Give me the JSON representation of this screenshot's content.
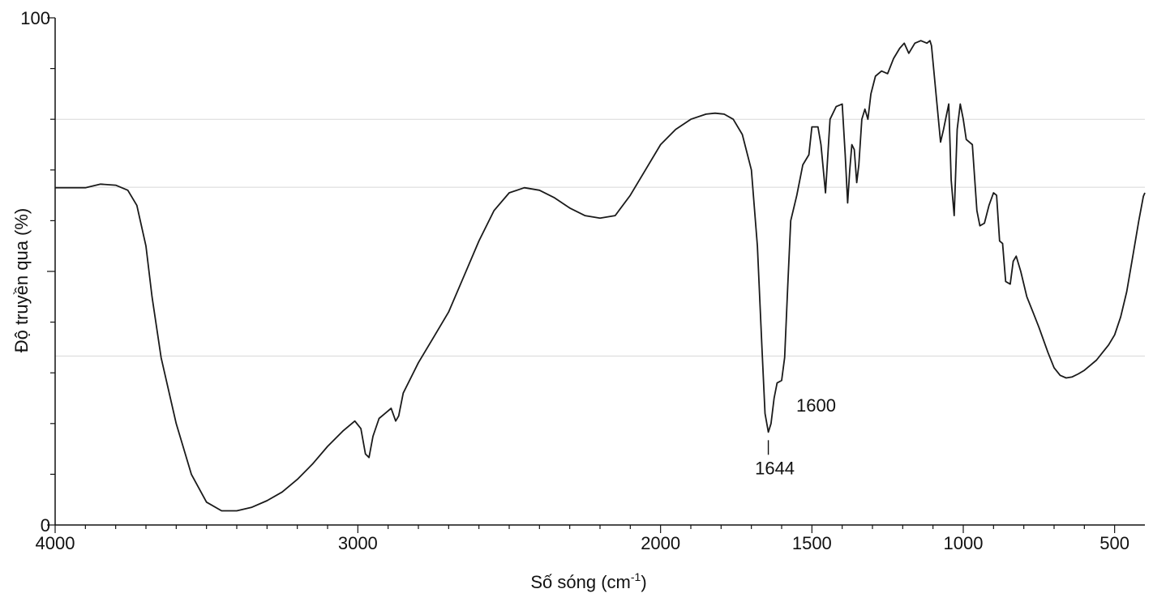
{
  "chart_data": {
    "type": "line",
    "title": "",
    "xlabel": "Số sóng (cm",
    "xlabel_sup": "-1",
    "xlabel_close": ")",
    "ylabel": "Độ truyền qua (%)",
    "xlim": [
      4000,
      400
    ],
    "ylim": [
      0,
      100
    ],
    "x_reversed": true,
    "grid": false,
    "x_ticks": [
      {
        "value": 4000,
        "label": "4000"
      },
      {
        "value": 3000,
        "label": "3000"
      },
      {
        "value": 2000,
        "label": "2000"
      },
      {
        "value": 1500,
        "label": "1500"
      },
      {
        "value": 1000,
        "label": "1000"
      },
      {
        "value": 500,
        "label": "500"
      }
    ],
    "y_ticks": [
      {
        "value": 100,
        "label": "100"
      },
      {
        "value": 0,
        "label": "0"
      }
    ],
    "annotations": [
      {
        "x": 1644,
        "y": 18,
        "label": "1644",
        "position": "below"
      },
      {
        "x": 1600,
        "y": 23,
        "label": "1600",
        "position": "right"
      }
    ],
    "series": [
      {
        "color": "#1a1a1a",
        "points": [
          [
            4000,
            66.5
          ],
          [
            3900,
            66.5
          ],
          [
            3850,
            67.2
          ],
          [
            3800,
            67
          ],
          [
            3760,
            66
          ],
          [
            3730,
            63
          ],
          [
            3700,
            55
          ],
          [
            3680,
            45
          ],
          [
            3650,
            33
          ],
          [
            3600,
            20
          ],
          [
            3550,
            10
          ],
          [
            3500,
            4.5
          ],
          [
            3450,
            2.8
          ],
          [
            3400,
            2.8
          ],
          [
            3350,
            3.5
          ],
          [
            3300,
            4.8
          ],
          [
            3250,
            6.5
          ],
          [
            3200,
            9
          ],
          [
            3150,
            12
          ],
          [
            3100,
            15.5
          ],
          [
            3050,
            18.5
          ],
          [
            3010,
            20.5
          ],
          [
            2990,
            19
          ],
          [
            2975,
            14
          ],
          [
            2963,
            13.3
          ],
          [
            2950,
            17.5
          ],
          [
            2930,
            21
          ],
          [
            2910,
            22
          ],
          [
            2890,
            23
          ],
          [
            2875,
            20.5
          ],
          [
            2865,
            21.5
          ],
          [
            2850,
            26
          ],
          [
            2800,
            32
          ],
          [
            2750,
            37
          ],
          [
            2700,
            42
          ],
          [
            2650,
            49
          ],
          [
            2600,
            56
          ],
          [
            2550,
            62
          ],
          [
            2500,
            65.5
          ],
          [
            2450,
            66.5
          ],
          [
            2400,
            66
          ],
          [
            2350,
            64.5
          ],
          [
            2300,
            62.5
          ],
          [
            2250,
            61
          ],
          [
            2200,
            60.5
          ],
          [
            2150,
            61
          ],
          [
            2100,
            65
          ],
          [
            2050,
            70
          ],
          [
            2000,
            75
          ],
          [
            1950,
            78
          ],
          [
            1900,
            80
          ],
          [
            1850,
            81
          ],
          [
            1820,
            81.2
          ],
          [
            1790,
            81
          ],
          [
            1760,
            80
          ],
          [
            1730,
            77
          ],
          [
            1700,
            70
          ],
          [
            1680,
            55
          ],
          [
            1665,
            35
          ],
          [
            1655,
            22
          ],
          [
            1644,
            18.3
          ],
          [
            1635,
            20
          ],
          [
            1625,
            25
          ],
          [
            1615,
            28
          ],
          [
            1600,
            28.5
          ],
          [
            1590,
            33
          ],
          [
            1580,
            47
          ],
          [
            1570,
            60
          ],
          [
            1550,
            65
          ],
          [
            1530,
            71
          ],
          [
            1510,
            73
          ],
          [
            1500,
            78.5
          ],
          [
            1480,
            78.5
          ],
          [
            1470,
            75
          ],
          [
            1455,
            65.5
          ],
          [
            1440,
            80
          ],
          [
            1420,
            82.5
          ],
          [
            1400,
            83
          ],
          [
            1390,
            73
          ],
          [
            1382,
            63.5
          ],
          [
            1375,
            70
          ],
          [
            1368,
            75
          ],
          [
            1360,
            74
          ],
          [
            1352,
            67.5
          ],
          [
            1345,
            71
          ],
          [
            1335,
            80
          ],
          [
            1325,
            82
          ],
          [
            1315,
            80
          ],
          [
            1305,
            85
          ],
          [
            1290,
            88.5
          ],
          [
            1270,
            89.5
          ],
          [
            1250,
            89
          ],
          [
            1230,
            92
          ],
          [
            1210,
            94
          ],
          [
            1195,
            95
          ],
          [
            1180,
            93
          ],
          [
            1160,
            95
          ],
          [
            1140,
            95.5
          ],
          [
            1120,
            95
          ],
          [
            1110,
            95.5
          ],
          [
            1105,
            94.5
          ],
          [
            1090,
            85
          ],
          [
            1075,
            75.5
          ],
          [
            1065,
            78
          ],
          [
            1055,
            81
          ],
          [
            1048,
            83
          ],
          [
            1040,
            68
          ],
          [
            1030,
            61
          ],
          [
            1020,
            78
          ],
          [
            1010,
            83
          ],
          [
            1000,
            80
          ],
          [
            990,
            76
          ],
          [
            970,
            75
          ],
          [
            955,
            62
          ],
          [
            945,
            59
          ],
          [
            930,
            59.5
          ],
          [
            915,
            63
          ],
          [
            900,
            65.5
          ],
          [
            890,
            65
          ],
          [
            880,
            56
          ],
          [
            870,
            55.5
          ],
          [
            860,
            48
          ],
          [
            845,
            47.5
          ],
          [
            835,
            52
          ],
          [
            825,
            53
          ],
          [
            810,
            50
          ],
          [
            790,
            45
          ],
          [
            770,
            42
          ],
          [
            750,
            39
          ],
          [
            720,
            34
          ],
          [
            700,
            31
          ],
          [
            680,
            29.5
          ],
          [
            660,
            29
          ],
          [
            640,
            29.2
          ],
          [
            620,
            29.8
          ],
          [
            600,
            30.5
          ],
          [
            580,
            31.5
          ],
          [
            560,
            32.5
          ],
          [
            540,
            34
          ],
          [
            520,
            35.5
          ],
          [
            500,
            37.5
          ],
          [
            480,
            41
          ],
          [
            460,
            46
          ],
          [
            440,
            53
          ],
          [
            420,
            60
          ],
          [
            405,
            64.8
          ],
          [
            400,
            65.5
          ]
        ]
      }
    ]
  }
}
